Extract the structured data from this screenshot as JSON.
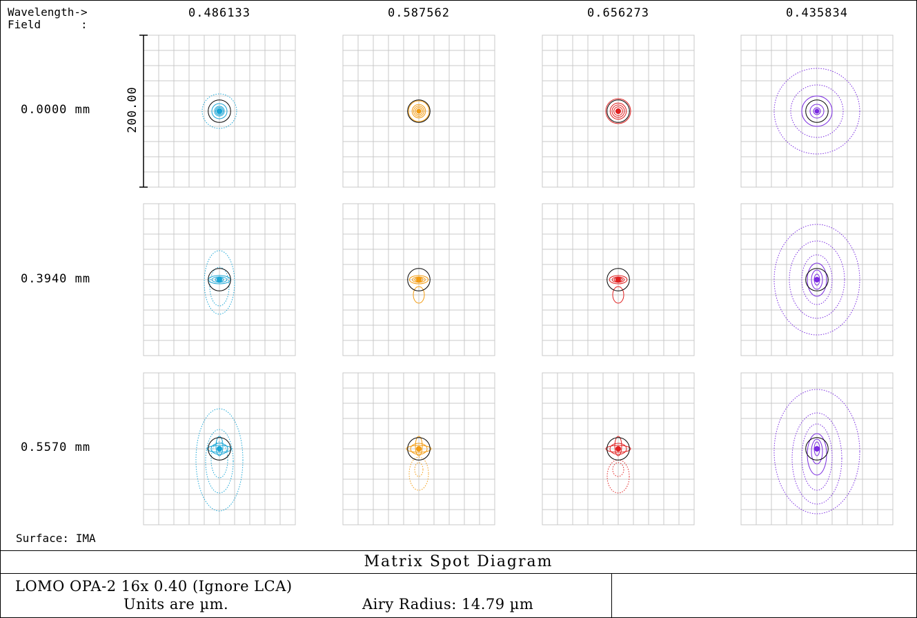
{
  "header": {
    "wavelength_label": "Wavelength->",
    "field_label": "Field      :"
  },
  "scale_label": "200.00",
  "surface_label": "Surface: IMA",
  "footer": {
    "title": "Matrix Spot Diagram",
    "lens_name": "LOMO OPA-2 16x 0.40 (Ignore LCA)",
    "units": "Units are µm.",
    "airy_radius": "Airy Radius: 14.79 µm"
  },
  "colors": {
    "grid": "#c8c8c8",
    "airy": "#000000"
  },
  "chart_data": {
    "type": "scatter",
    "wavelengths_um": [
      "0.486133",
      "0.587562",
      "0.656273",
      "0.435834"
    ],
    "fields_mm": [
      "0.0000 mm",
      "0.3940 mm",
      "0.5570 mm"
    ],
    "series_colors": [
      "#1aa6d6",
      "#f39c12",
      "#e02020",
      "#7a2be0"
    ],
    "box_size_um": 200.0,
    "airy_radius_um": 14.79
  }
}
